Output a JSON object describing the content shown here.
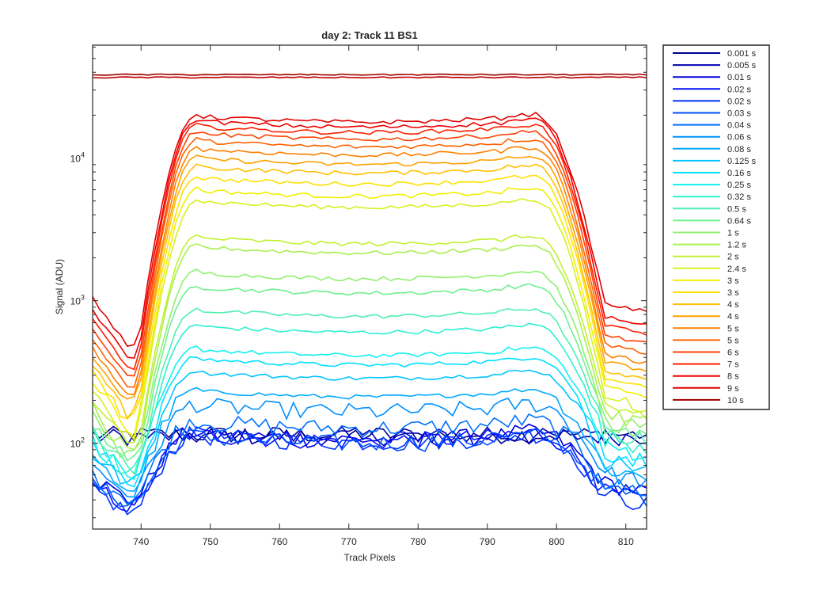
{
  "chart_data": {
    "type": "line",
    "title": "day 2: Track 11  BS1",
    "xlabel": "Track Pixels",
    "ylabel": "Signal (ADU)",
    "xlim": [
      733,
      813
    ],
    "ylim": [
      25,
      62000
    ],
    "yscale": "log",
    "grid": false,
    "legend_position": "outside-right",
    "x_ticks": [
      740,
      750,
      760,
      770,
      780,
      790,
      800,
      810
    ],
    "x_tick_labels": [
      "740",
      "750",
      "760",
      "770",
      "780",
      "790",
      "800",
      "810"
    ],
    "y_ticks": [
      100,
      1000,
      10000
    ],
    "y_tick_labels": [
      {
        "base": "10",
        "exp": "2"
      },
      {
        "base": "10",
        "exp": "3"
      },
      {
        "base": "10",
        "exp": "4"
      }
    ],
    "series": [
      {
        "name": "0.001 s",
        "color": "#00008f",
        "plateau": 115,
        "edge": 110,
        "dip": 88,
        "flat": true
      },
      {
        "name": "0.005 s",
        "color": "#0000b0",
        "plateau": 112,
        "edge": 100,
        "dip": 80,
        "flat": true
      },
      {
        "name": "0.01 s",
        "color": "#0000df",
        "plateau": 108,
        "edge": 55,
        "dip": 40
      },
      {
        "name": "0.02 s",
        "color": "#0010ff",
        "plateau": 106,
        "edge": 48,
        "dip": 36
      },
      {
        "name": "0.02 s",
        "color": "#0030ff",
        "plateau": 104,
        "edge": 45,
        "dip": 33
      },
      {
        "name": "0.03 s",
        "color": "#0050ff",
        "plateau": 102,
        "edge": 50,
        "dip": 38
      },
      {
        "name": "0.04 s",
        "color": "#0070ff",
        "plateau": 130,
        "edge": 55,
        "dip": 42
      },
      {
        "name": "0.06 s",
        "color": "#0090ff",
        "plateau": 170,
        "edge": 65,
        "dip": 45
      },
      {
        "name": "0.08 s",
        "color": "#00aaff",
        "plateau": 215,
        "edge": 70,
        "dip": 48
      },
      {
        "name": "0.125 s",
        "color": "#00c4ff",
        "plateau": 290,
        "edge": 80,
        "dip": 52
      },
      {
        "name": "0.16 s",
        "color": "#00e0ff",
        "plateau": 360,
        "edge": 90,
        "dip": 55
      },
      {
        "name": "0.25 s",
        "color": "#10f0f0",
        "plateau": 420,
        "edge": 100,
        "dip": 60
      },
      {
        "name": "0.32 s",
        "color": "#2ef0d0",
        "plateau": 610,
        "edge": 115,
        "dip": 62
      },
      {
        "name": "0.5 s",
        "color": "#4ff0b0",
        "plateau": 790,
        "edge": 125,
        "dip": 65
      },
      {
        "name": "0.64 s",
        "color": "#70f090",
        "plateau": 1150,
        "edge": 135,
        "dip": 75
      },
      {
        "name": "1 s",
        "color": "#90f070",
        "plateau": 1450,
        "edge": 150,
        "dip": 80
      },
      {
        "name": "1.2 s",
        "color": "#a8f050",
        "plateau": 2200,
        "edge": 170,
        "dip": 85
      },
      {
        "name": "2 s",
        "color": "#c4f030",
        "plateau": 2550,
        "edge": 190,
        "dip": 95
      },
      {
        "name": "2.4 s",
        "color": "#d8f020",
        "plateau": 4600,
        "edge": 220,
        "dip": 110
      },
      {
        "name": "3 s",
        "color": "#f0f000",
        "plateau": 5500,
        "edge": 260,
        "dip": 125
      },
      {
        "name": "3 s",
        "color": "#ffe000",
        "plateau": 6700,
        "edge": 300,
        "dip": 145
      },
      {
        "name": "4 s",
        "color": "#ffc000",
        "plateau": 8000,
        "edge": 340,
        "dip": 165
      },
      {
        "name": "4 s",
        "color": "#ffa000",
        "plateau": 9200,
        "edge": 390,
        "dip": 190
      },
      {
        "name": "5 s",
        "color": "#ff8000",
        "plateau": 10700,
        "edge": 440,
        "dip": 215
      },
      {
        "name": "5 s",
        "color": "#ff6000",
        "plateau": 12200,
        "edge": 520,
        "dip": 250
      },
      {
        "name": "6 s",
        "color": "#ff4000",
        "plateau": 13800,
        "edge": 600,
        "dip": 290
      },
      {
        "name": "7 s",
        "color": "#ff2000",
        "plateau": 15400,
        "edge": 700,
        "dip": 340
      },
      {
        "name": "8 s",
        "color": "#f00000",
        "plateau": 16800,
        "edge": 820,
        "dip": 400
      },
      {
        "name": "9 s",
        "color": "#e00000",
        "plateau": 18200,
        "edge": 1000,
        "dip": 480
      },
      {
        "name": "10 s",
        "color": "#a00000",
        "plateau": 38500,
        "edge": 38500,
        "dip": 38500,
        "flat": true,
        "saturated": true
      }
    ]
  }
}
